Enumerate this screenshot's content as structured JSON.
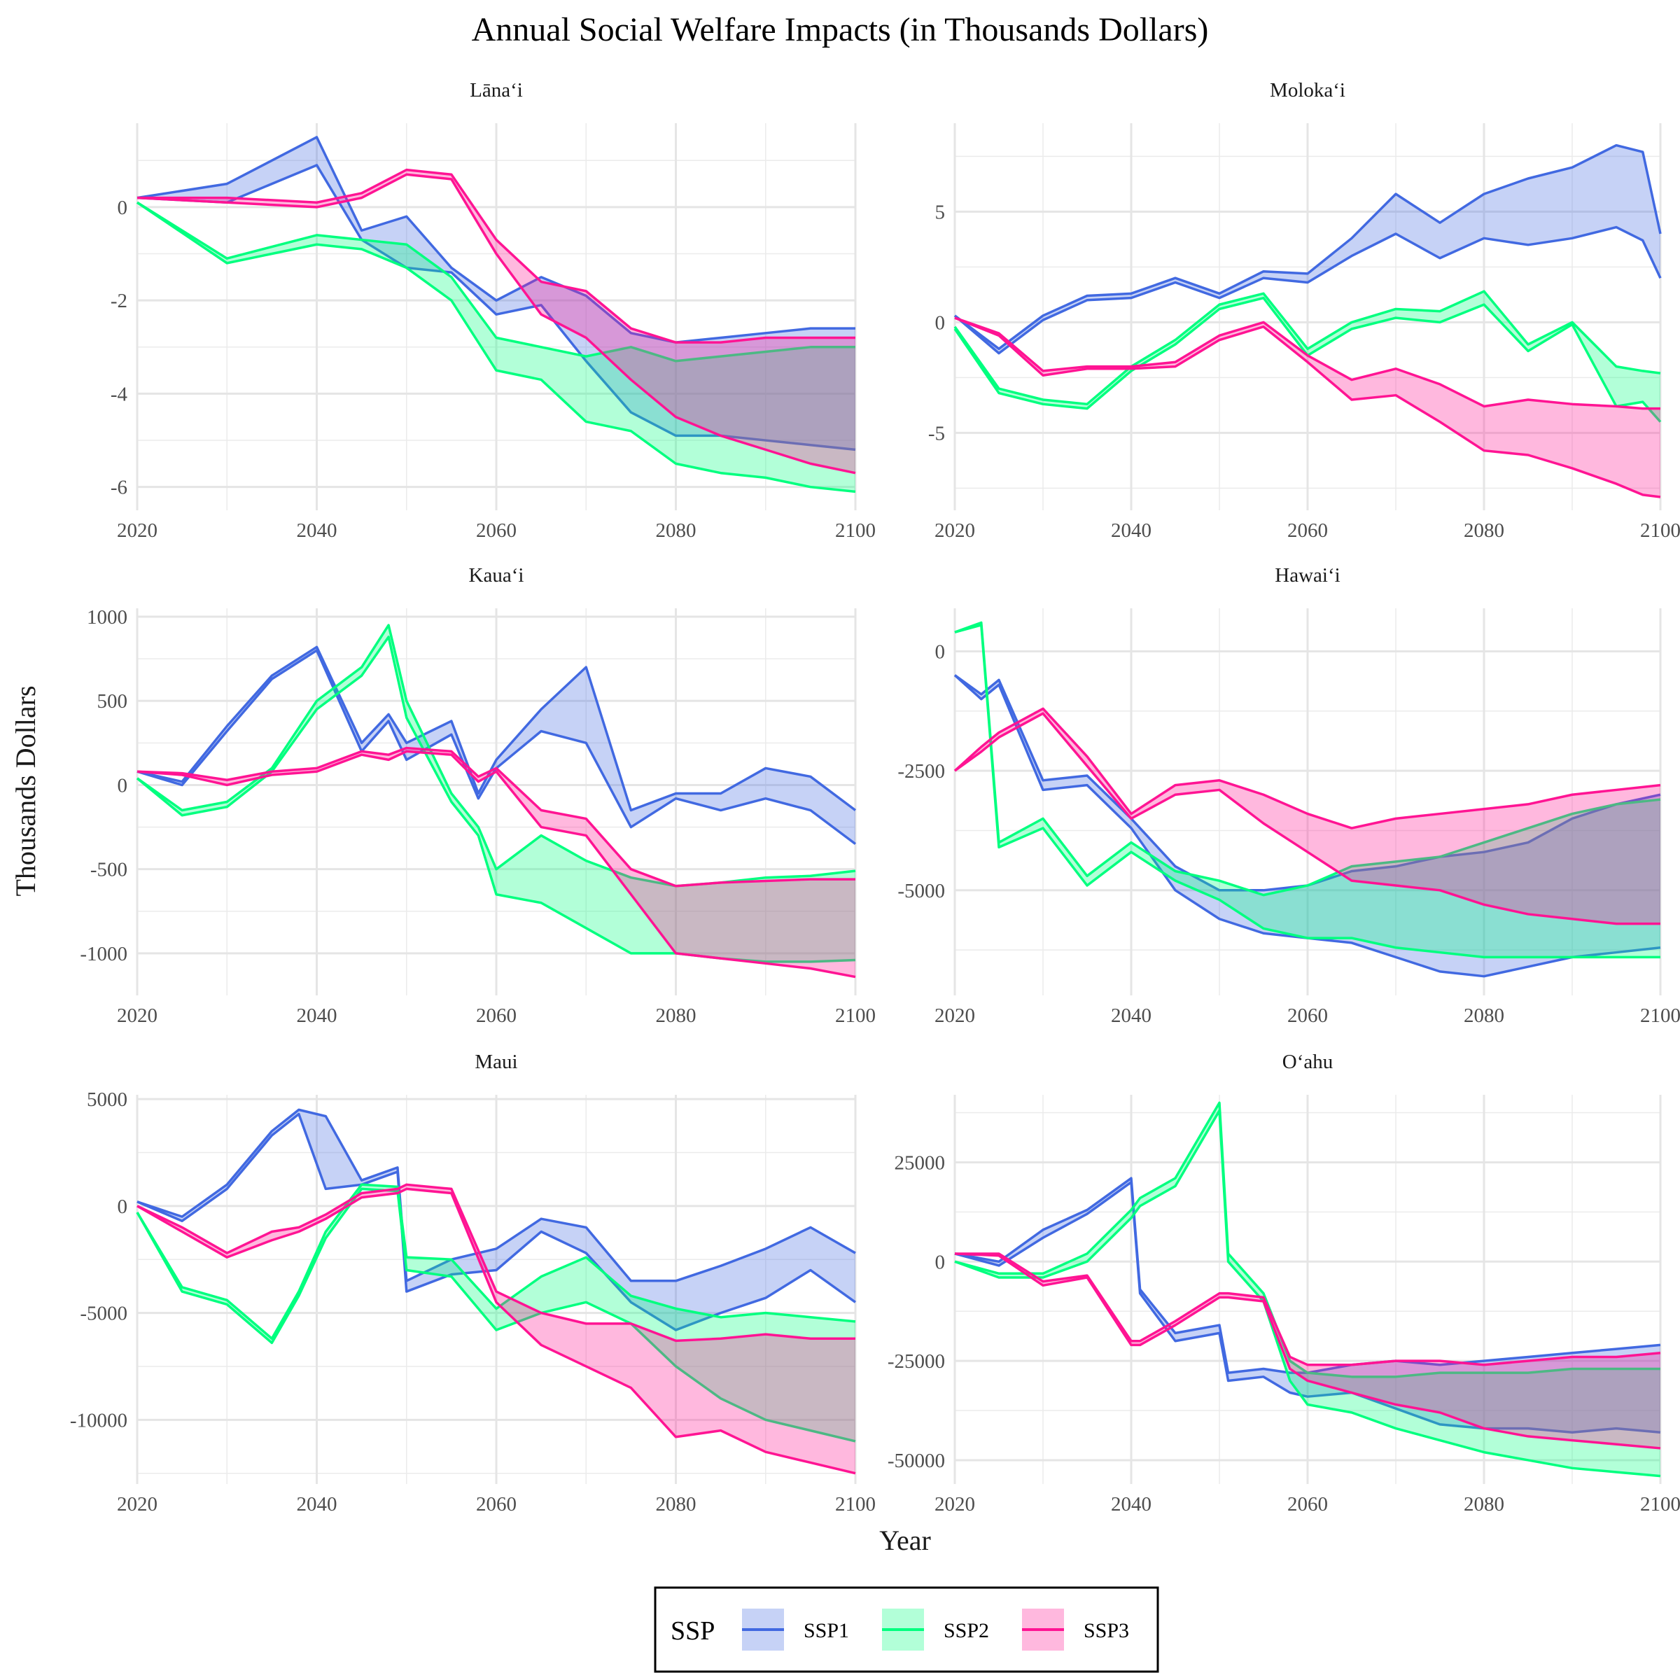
{
  "title": "Annual Social Welfare Impacts (in Thousands Dollars)",
  "xlabel": "Year",
  "ylabel": "Thousands Dollars",
  "legend": {
    "title": "SSP",
    "entries": [
      {
        "label": "SSP1",
        "color": "#4169E1"
      },
      {
        "label": "SSP2",
        "color": "#00FF7F"
      },
      {
        "label": "SSP3",
        "color": "#FF1493"
      }
    ]
  },
  "chart_data": [
    {
      "type": "area",
      "panel": "Lāna‘i",
      "xlim": [
        2020,
        2100
      ],
      "ylim": [
        -6.5,
        1.8
      ],
      "x_ticks": [
        2020,
        2040,
        2060,
        2080,
        2100
      ],
      "y_ticks": [
        0,
        -2,
        -4,
        -6
      ],
      "y_tick_labels": [
        "0",
        "-2",
        "-4",
        "-6"
      ],
      "x": [
        2020,
        2030,
        2040,
        2045,
        2050,
        2055,
        2060,
        2065,
        2070,
        2075,
        2080,
        2085,
        2090,
        2095,
        2100
      ],
      "series": [
        {
          "name": "SSP1",
          "upper": [
            0.2,
            0.5,
            1.5,
            -0.5,
            -0.2,
            -1.3,
            -2.0,
            -1.5,
            -1.9,
            -2.7,
            -2.9,
            -2.8,
            -2.7,
            -2.6,
            -2.6
          ],
          "lower": [
            0.2,
            0.1,
            0.9,
            -0.7,
            -1.3,
            -1.4,
            -2.3,
            -2.1,
            -3.3,
            -4.4,
            -4.9,
            -4.9,
            -5.0,
            -5.1,
            -5.2
          ]
        },
        {
          "name": "SSP2",
          "upper": [
            0.1,
            -1.1,
            -0.6,
            -0.7,
            -0.8,
            -1.5,
            -2.8,
            -3.0,
            -3.2,
            -3.0,
            -3.3,
            -3.2,
            -3.1,
            -3.0,
            -3.0
          ],
          "lower": [
            0.1,
            -1.2,
            -0.8,
            -0.9,
            -1.3,
            -2.0,
            -3.5,
            -3.7,
            -4.6,
            -4.8,
            -5.5,
            -5.7,
            -5.8,
            -6.0,
            -6.1
          ]
        },
        {
          "name": "SSP3",
          "upper": [
            0.2,
            0.2,
            0.1,
            0.3,
            0.8,
            0.7,
            -0.7,
            -1.6,
            -1.8,
            -2.6,
            -2.9,
            -2.9,
            -2.8,
            -2.8,
            -2.8
          ],
          "lower": [
            0.2,
            0.1,
            0.0,
            0.2,
            0.7,
            0.6,
            -1.0,
            -2.3,
            -2.8,
            -3.7,
            -4.5,
            -4.9,
            -5.2,
            -5.5,
            -5.7
          ]
        }
      ]
    },
    {
      "type": "area",
      "panel": "Moloka‘i",
      "xlim": [
        2020,
        2100
      ],
      "ylim": [
        -8.5,
        9.0
      ],
      "x_ticks": [
        2020,
        2040,
        2060,
        2080,
        2100
      ],
      "y_ticks": [
        5,
        0,
        -5
      ],
      "y_tick_labels": [
        "5",
        "0",
        "-5"
      ],
      "x": [
        2020,
        2025,
        2030,
        2035,
        2040,
        2045,
        2050,
        2055,
        2060,
        2065,
        2070,
        2075,
        2080,
        2085,
        2090,
        2095,
        2098,
        2100
      ],
      "series": [
        {
          "name": "SSP1",
          "upper": [
            0.3,
            -1.2,
            0.3,
            1.2,
            1.3,
            2.0,
            1.3,
            2.3,
            2.2,
            3.8,
            5.8,
            4.5,
            5.8,
            6.5,
            7.0,
            8.0,
            7.7,
            4.0
          ],
          "lower": [
            0.3,
            -1.4,
            0.1,
            1.0,
            1.1,
            1.8,
            1.1,
            2.0,
            1.8,
            3.0,
            4.0,
            2.9,
            3.8,
            3.5,
            3.8,
            4.3,
            3.7,
            2.0
          ]
        },
        {
          "name": "SSP2",
          "upper": [
            -0.2,
            -3.0,
            -3.5,
            -3.7,
            -2.0,
            -0.8,
            0.8,
            1.3,
            -1.2,
            0.0,
            0.6,
            0.5,
            1.4,
            -1.0,
            0.0,
            -2.0,
            -2.2,
            -2.3
          ],
          "lower": [
            -0.3,
            -3.2,
            -3.7,
            -3.9,
            -2.2,
            -1.0,
            0.6,
            1.1,
            -1.5,
            -0.3,
            0.2,
            0.0,
            0.8,
            -1.3,
            -0.1,
            -3.8,
            -3.6,
            -4.5
          ]
        },
        {
          "name": "SSP3",
          "upper": [
            0.2,
            -0.5,
            -2.2,
            -2.0,
            -2.0,
            -1.8,
            -0.6,
            0.0,
            -1.5,
            -2.6,
            -2.1,
            -2.8,
            -3.8,
            -3.5,
            -3.7,
            -3.8,
            -3.9,
            -3.9
          ],
          "lower": [
            0.2,
            -0.6,
            -2.4,
            -2.1,
            -2.1,
            -2.0,
            -0.8,
            -0.2,
            -1.8,
            -3.5,
            -3.3,
            -4.5,
            -5.8,
            -6.0,
            -6.6,
            -7.3,
            -7.8,
            -7.9
          ]
        }
      ]
    },
    {
      "type": "area",
      "panel": "Kaua‘i",
      "xlim": [
        2020,
        2100
      ],
      "ylim": [
        -1250,
        1050
      ],
      "x_ticks": [
        2020,
        2040,
        2060,
        2080,
        2100
      ],
      "y_ticks": [
        1000,
        500,
        0,
        -500,
        -1000
      ],
      "y_tick_labels": [
        "1000",
        "500",
        "0",
        "-500",
        "-1000"
      ],
      "x": [
        2020,
        2025,
        2030,
        2035,
        2040,
        2045,
        2048,
        2050,
        2055,
        2058,
        2060,
        2065,
        2070,
        2075,
        2080,
        2085,
        2090,
        2095,
        2100
      ],
      "series": [
        {
          "name": "SSP1",
          "upper": [
            80,
            20,
            350,
            650,
            820,
            250,
            420,
            250,
            380,
            -50,
            150,
            450,
            700,
            -150,
            -50,
            -50,
            100,
            50,
            -150
          ],
          "lower": [
            80,
            0,
            320,
            630,
            800,
            200,
            380,
            150,
            300,
            -80,
            100,
            320,
            250,
            -250,
            -80,
            -150,
            -80,
            -150,
            -350
          ]
        },
        {
          "name": "SSP2",
          "upper": [
            40,
            -150,
            -100,
            100,
            500,
            700,
            950,
            500,
            -50,
            -250,
            -500,
            -300,
            -450,
            -550,
            -600,
            -580,
            -550,
            -540,
            -510
          ],
          "lower": [
            40,
            -180,
            -130,
            80,
            450,
            650,
            880,
            400,
            -100,
            -300,
            -650,
            -700,
            -850,
            -1000,
            -1000,
            -1030,
            -1050,
            -1050,
            -1040
          ]
        },
        {
          "name": "SSP3",
          "upper": [
            80,
            70,
            30,
            80,
            100,
            200,
            180,
            220,
            200,
            50,
            100,
            -150,
            -200,
            -500,
            -600,
            -580,
            -570,
            -560,
            -560
          ],
          "lower": [
            80,
            60,
            0,
            60,
            80,
            180,
            150,
            200,
            180,
            20,
            80,
            -250,
            -300,
            -650,
            -1000,
            -1030,
            -1060,
            -1090,
            -1140
          ]
        }
      ]
    },
    {
      "type": "area",
      "panel": "Hawai‘i",
      "xlim": [
        2020,
        2100
      ],
      "ylim": [
        -7200,
        900
      ],
      "x_ticks": [
        2020,
        2040,
        2060,
        2080,
        2100
      ],
      "y_ticks": [
        0,
        -2500,
        -5000
      ],
      "y_tick_labels": [
        "0",
        "-2500",
        "-5000"
      ],
      "x": [
        2020,
        2023,
        2025,
        2030,
        2035,
        2040,
        2045,
        2050,
        2055,
        2060,
        2065,
        2070,
        2075,
        2080,
        2085,
        2090,
        2095,
        2100
      ],
      "series": [
        {
          "name": "SSP1",
          "upper": [
            -500,
            -900,
            -600,
            -2700,
            -2600,
            -3500,
            -4500,
            -5000,
            -5000,
            -4900,
            -4600,
            -4500,
            -4300,
            -4200,
            -4000,
            -3500,
            -3200,
            -3000
          ],
          "lower": [
            -500,
            -1000,
            -700,
            -2900,
            -2800,
            -3700,
            -5000,
            -5600,
            -5900,
            -6000,
            -6100,
            -6400,
            -6700,
            -6800,
            -6600,
            -6400,
            -6300,
            -6200
          ]
        },
        {
          "name": "SSP2",
          "upper": [
            400,
            600,
            -4000,
            -3500,
            -4700,
            -4000,
            -4600,
            -4800,
            -5100,
            -4900,
            -4500,
            -4400,
            -4300,
            -4000,
            -3700,
            -3400,
            -3200,
            -3100
          ],
          "lower": [
            400,
            550,
            -4100,
            -3700,
            -4900,
            -4200,
            -4800,
            -5200,
            -5800,
            -6000,
            -6000,
            -6200,
            -6300,
            -6400,
            -6400,
            -6400,
            -6400,
            -6400
          ]
        },
        {
          "name": "SSP3",
          "upper": [
            -2500,
            -2000,
            -1700,
            -1200,
            -2200,
            -3400,
            -2800,
            -2700,
            -3000,
            -3400,
            -3700,
            -3500,
            -3400,
            -3300,
            -3200,
            -3000,
            -2900,
            -2800
          ],
          "lower": [
            -2500,
            -2100,
            -1800,
            -1300,
            -2400,
            -3500,
            -3000,
            -2900,
            -3600,
            -4200,
            -4800,
            -4900,
            -5000,
            -5300,
            -5500,
            -5600,
            -5700,
            -5700
          ]
        }
      ]
    },
    {
      "type": "area",
      "panel": "Maui",
      "xlim": [
        2020,
        2100
      ],
      "ylim": [
        -13000,
        5200
      ],
      "x_ticks": [
        2020,
        2040,
        2060,
        2080,
        2100
      ],
      "y_ticks": [
        5000,
        0,
        -5000,
        -10000
      ],
      "y_tick_labels": [
        "5000",
        "0",
        "-5000",
        "-10000"
      ],
      "x": [
        2020,
        2025,
        2030,
        2035,
        2038,
        2041,
        2045,
        2049,
        2050,
        2055,
        2060,
        2065,
        2070,
        2075,
        2080,
        2085,
        2090,
        2095,
        2100
      ],
      "series": [
        {
          "name": "SSP1",
          "upper": [
            200,
            -500,
            1000,
            3500,
            4500,
            4200,
            1200,
            1800,
            -3500,
            -2500,
            -2000,
            -600,
            -1000,
            -3500,
            -3500,
            -2800,
            -2000,
            -1000,
            -2200
          ],
          "lower": [
            200,
            -700,
            800,
            3300,
            4300,
            800,
            1000,
            1600,
            -4000,
            -3200,
            -3000,
            -1200,
            -2200,
            -4500,
            -5800,
            -5000,
            -4300,
            -3000,
            -4500
          ]
        },
        {
          "name": "SSP2",
          "upper": [
            -300,
            -3800,
            -4400,
            -6200,
            -4000,
            -1200,
            1000,
            900,
            -2400,
            -2500,
            -4800,
            -3300,
            -2400,
            -4200,
            -4800,
            -5200,
            -5000,
            -5200,
            -5400
          ],
          "lower": [
            -300,
            -4000,
            -4600,
            -6400,
            -4200,
            -1500,
            800,
            700,
            -3000,
            -3300,
            -5800,
            -5000,
            -4500,
            -5500,
            -7500,
            -9000,
            -10000,
            -10500,
            -11000
          ]
        },
        {
          "name": "SSP3",
          "upper": [
            0,
            -1000,
            -2200,
            -1200,
            -1000,
            -400,
            600,
            800,
            1000,
            800,
            -4000,
            -5000,
            -5500,
            -5500,
            -6300,
            -6200,
            -6000,
            -6200,
            -6200
          ],
          "lower": [
            0,
            -1200,
            -2400,
            -1600,
            -1200,
            -600,
            400,
            600,
            800,
            600,
            -4500,
            -6500,
            -7500,
            -8500,
            -10800,
            -10500,
            -11500,
            -12000,
            -12500
          ]
        }
      ]
    },
    {
      "type": "area",
      "panel": "O‘ahu",
      "xlim": [
        2020,
        2100
      ],
      "ylim": [
        -56000,
        42000
      ],
      "x_ticks": [
        2020,
        2040,
        2060,
        2080,
        2100
      ],
      "y_ticks": [
        25000,
        0,
        -25000,
        -50000
      ],
      "y_tick_labels": [
        "25000",
        "0",
        "-25000",
        "-50000"
      ],
      "x": [
        2020,
        2025,
        2030,
        2035,
        2040,
        2041,
        2045,
        2050,
        2051,
        2055,
        2058,
        2060,
        2065,
        2070,
        2075,
        2080,
        2085,
        2090,
        2095,
        2100
      ],
      "series": [
        {
          "name": "SSP1",
          "upper": [
            2000,
            0,
            8000,
            13000,
            21000,
            -7000,
            -18000,
            -16000,
            -28000,
            -27000,
            -28000,
            -28000,
            -26000,
            -25000,
            -26000,
            -25000,
            -24000,
            -23000,
            -22000,
            -21000
          ],
          "lower": [
            2000,
            -1000,
            6000,
            12000,
            20000,
            -8000,
            -20000,
            -18000,
            -30000,
            -29000,
            -33000,
            -34000,
            -33000,
            -37000,
            -41000,
            -42000,
            -42000,
            -43000,
            -42000,
            -43000
          ]
        },
        {
          "name": "SSP2",
          "upper": [
            0,
            -3000,
            -3000,
            2000,
            13000,
            16000,
            21000,
            40000,
            2000,
            -8000,
            -25000,
            -28000,
            -29000,
            -29000,
            -28000,
            -28000,
            -28000,
            -27000,
            -27000,
            -27000
          ],
          "lower": [
            0,
            -4000,
            -4000,
            0,
            11000,
            14000,
            19000,
            38000,
            0,
            -10000,
            -30000,
            -36000,
            -38000,
            -42000,
            -45000,
            -48000,
            -50000,
            -52000,
            -53000,
            -54000
          ]
        },
        {
          "name": "SSP3",
          "upper": [
            2000,
            2000,
            -5000,
            -3500,
            -20000,
            -20000,
            -15000,
            -8000,
            -8000,
            -9000,
            -24000,
            -26000,
            -26000,
            -25000,
            -25000,
            -26000,
            -25000,
            -24000,
            -24000,
            -23000
          ],
          "lower": [
            2000,
            1500,
            -6000,
            -4000,
            -21000,
            -21000,
            -16000,
            -9000,
            -9000,
            -10000,
            -27000,
            -30000,
            -33000,
            -36000,
            -38000,
            -42000,
            -44000,
            -45000,
            -46000,
            -47000
          ]
        }
      ]
    }
  ]
}
